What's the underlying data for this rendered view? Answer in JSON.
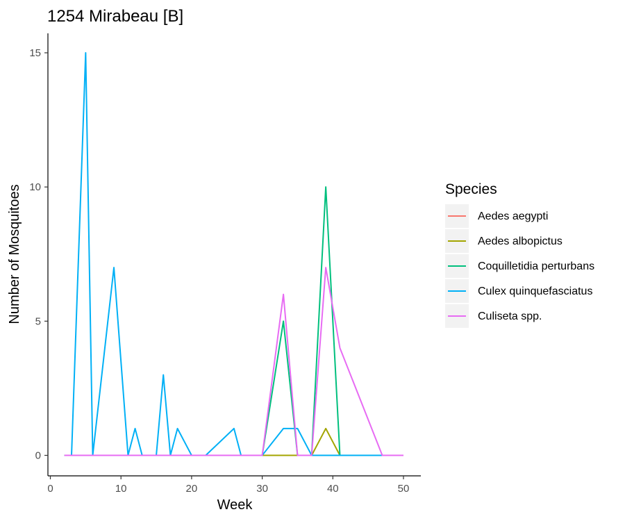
{
  "chart_data": {
    "type": "line",
    "title": "1254 Mirabeau [B]",
    "xlabel": "Week",
    "ylabel": "Number of Mosquitoes",
    "xlim": [
      0,
      50
    ],
    "ylim": [
      0,
      15
    ],
    "xticks": [
      0,
      10,
      20,
      30,
      40,
      50
    ],
    "yticks": [
      0,
      5,
      10,
      15
    ],
    "grid": false,
    "legend": {
      "title": "Species",
      "position": "right"
    },
    "series": [
      {
        "name": "Aedes aegypti",
        "color": "#F8766D",
        "x": [
          2,
          3,
          5,
          6,
          9,
          11,
          12,
          13,
          15,
          16,
          17,
          18,
          20,
          22,
          26,
          27,
          30,
          33,
          35,
          37,
          39,
          41,
          47,
          50
        ],
        "y": [
          0,
          0,
          0,
          0,
          0,
          0,
          0,
          0,
          0,
          0,
          0,
          0,
          0,
          0,
          0,
          0,
          0,
          0,
          0,
          0,
          0,
          0,
          0,
          0
        ]
      },
      {
        "name": "Aedes albopictus",
        "color": "#A3A500",
        "x": [
          2,
          3,
          5,
          6,
          9,
          11,
          12,
          13,
          15,
          16,
          17,
          18,
          20,
          22,
          26,
          27,
          30,
          33,
          35,
          37,
          39,
          41,
          47,
          50
        ],
        "y": [
          0,
          0,
          0,
          0,
          0,
          0,
          0,
          0,
          0,
          0,
          0,
          0,
          0,
          0,
          0,
          0,
          0,
          0,
          0,
          0,
          1,
          0,
          0,
          0
        ]
      },
      {
        "name": "Coquilletidia perturbans",
        "color": "#00BF7D",
        "x": [
          2,
          3,
          5,
          6,
          9,
          11,
          12,
          13,
          15,
          16,
          17,
          18,
          20,
          22,
          26,
          27,
          30,
          33,
          35,
          37,
          39,
          41,
          47,
          50
        ],
        "y": [
          0,
          0,
          0,
          0,
          0,
          0,
          0,
          0,
          0,
          0,
          0,
          0,
          0,
          0,
          0,
          0,
          0,
          5,
          0,
          0,
          10,
          0,
          0,
          0
        ]
      },
      {
        "name": "Culex quinquefasciatus",
        "color": "#00B0F6",
        "x": [
          2,
          3,
          5,
          6,
          9,
          11,
          12,
          13,
          15,
          16,
          17,
          18,
          20,
          22,
          26,
          27,
          30,
          33,
          34,
          35,
          37,
          39,
          41,
          47,
          50
        ],
        "y": [
          0,
          0,
          15,
          0,
          7,
          0,
          1,
          0,
          0,
          3,
          0,
          1,
          0,
          0,
          1,
          0,
          0,
          1,
          1,
          1,
          0,
          0,
          0,
          0,
          0
        ]
      },
      {
        "name": "Culiseta spp.",
        "color": "#E76BF3",
        "x": [
          2,
          3,
          5,
          6,
          9,
          11,
          12,
          13,
          15,
          16,
          17,
          18,
          20,
          22,
          26,
          27,
          30,
          33,
          35,
          37,
          39,
          41,
          47,
          50
        ],
        "y": [
          0,
          0,
          0,
          0,
          0,
          0,
          0,
          0,
          0,
          0,
          0,
          0,
          0,
          0,
          0,
          0,
          0,
          6,
          0,
          0,
          7,
          4,
          0,
          0
        ]
      }
    ]
  }
}
